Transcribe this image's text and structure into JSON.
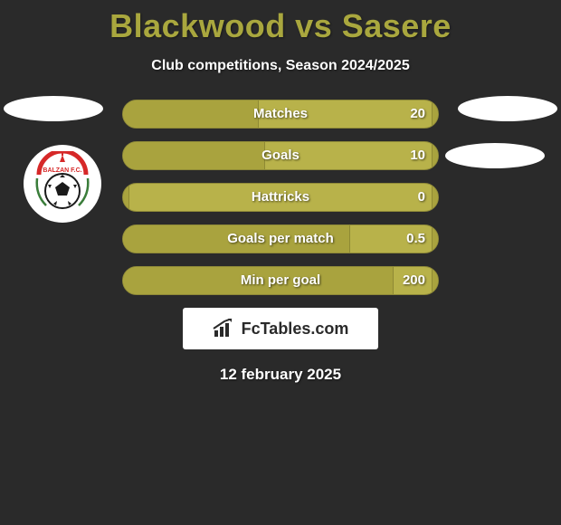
{
  "title": "Blackwood vs Sasere",
  "subtitle": "Club competitions, Season 2024/2025",
  "colors": {
    "background": "#2a2a2a",
    "accent": "#a9a73e",
    "bar_light": "#b8b24a",
    "bar_dark": "#a9a33e",
    "text": "#ffffff"
  },
  "stats": [
    {
      "label": "Matches",
      "scale": "20",
      "left_pct": 43,
      "right_pct": 2
    },
    {
      "label": "Goals",
      "scale": "10",
      "left_pct": 45,
      "right_pct": 2
    },
    {
      "label": "Hattricks",
      "scale": "0",
      "left_pct": 2,
      "right_pct": 2
    },
    {
      "label": "Goals per match",
      "scale": "0.5",
      "left_pct": 72,
      "right_pct": 2
    },
    {
      "label": "Min per goal",
      "scale": "200",
      "left_pct": 86,
      "right_pct": 2
    }
  ],
  "branding": "FcTables.com",
  "date": "12 february 2025",
  "badge": {
    "name": "BALZAN F.C.",
    "arc_color": "#d62828",
    "ball": true
  }
}
